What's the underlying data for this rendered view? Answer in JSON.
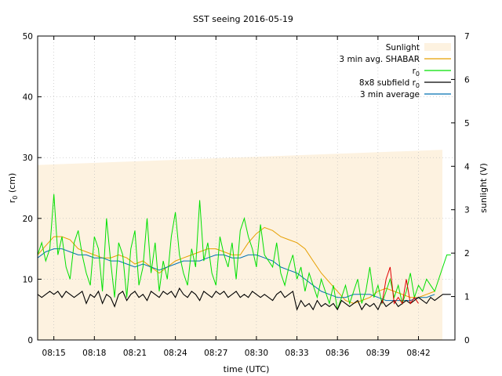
{
  "chart_data": {
    "type": "line",
    "title": "SST seeing 2016-05-19",
    "xlabel": "time (UTC)",
    "ylabel_main": "r",
    "ylabel_sub": "0",
    "ylabel_unit": " (cm)",
    "y2label": "sunlight (V)",
    "xlim": [
      8.23,
      8.745
    ],
    "ylim": [
      0,
      50
    ],
    "y2lim": [
      0,
      7
    ],
    "grid": true,
    "legend_position": "top-right",
    "x_ticks": [
      {
        "x": 8.25,
        "label": "08:15"
      },
      {
        "x": 8.3,
        "label": "08:18"
      },
      {
        "x": 8.35,
        "label": "08:21"
      },
      {
        "x": 8.4,
        "label": "08:24"
      },
      {
        "x": 8.45,
        "label": "08:27"
      },
      {
        "x": 8.5,
        "label": "08:30"
      },
      {
        "x": 8.55,
        "label": "08:33"
      },
      {
        "x": 8.6,
        "label": "08:36"
      },
      {
        "x": 8.65,
        "label": "08:39"
      },
      {
        "x": 8.7,
        "label": "08:42"
      }
    ],
    "y_ticks": [
      "0",
      "10",
      "20",
      "30",
      "40",
      "50"
    ],
    "y2_ticks": [
      "0",
      "1",
      "2",
      "3",
      "4",
      "5",
      "6",
      "7"
    ],
    "legend": [
      {
        "label": "Sunlight",
        "color": "#fdf2e0",
        "kind": "area"
      },
      {
        "label": "3 min avg. SHABAR",
        "color": "#e69f00",
        "kind": "line"
      },
      {
        "label": "r",
        "sub": "0",
        "color": "#00e000",
        "kind": "line"
      },
      {
        "label": "8x8 subfield r",
        "sub": "0",
        "color": "#000000",
        "kind": "line"
      },
      {
        "label": "3 min average",
        "color": "#0072b2",
        "kind": "line"
      }
    ],
    "series": [
      {
        "name": "Sunlight",
        "axis": "y2",
        "type": "area",
        "color": "#fdf2e0",
        "x": [
          8.23,
          8.745
        ],
        "y": [
          4.03,
          4.38
        ]
      },
      {
        "name": "3 min avg. SHABAR",
        "color": "#e69f00",
        "x": [
          8.23,
          8.24,
          8.25,
          8.26,
          8.27,
          8.28,
          8.29,
          8.3,
          8.31,
          8.32,
          8.33,
          8.34,
          8.35,
          8.36,
          8.37,
          8.38,
          8.39,
          8.4,
          8.41,
          8.42,
          8.43,
          8.44,
          8.45,
          8.46,
          8.47,
          8.48,
          8.49,
          8.5,
          8.51,
          8.52,
          8.53,
          8.54,
          8.55,
          8.56,
          8.57,
          8.58,
          8.59,
          8.6,
          8.61,
          8.62,
          8.63,
          8.64,
          8.65,
          8.66,
          8.67,
          8.68,
          8.69,
          8.7,
          8.71,
          8.72
        ],
        "y": [
          14,
          15.5,
          17,
          17,
          16.5,
          15,
          14.5,
          14,
          13.5,
          13.5,
          14,
          13.5,
          12.5,
          13,
          12,
          11,
          12,
          13,
          13.5,
          14,
          14.5,
          15,
          15,
          14.5,
          14,
          14,
          16,
          17.5,
          18.5,
          18,
          17,
          16.5,
          16,
          15,
          13,
          11,
          9.5,
          8,
          6.5,
          6,
          6.5,
          7,
          8,
          8.5,
          8,
          7.5,
          7,
          7,
          7.5,
          8
        ]
      },
      {
        "name": "3 min average",
        "color": "#0072b2",
        "x": [
          8.23,
          8.24,
          8.25,
          8.26,
          8.27,
          8.28,
          8.29,
          8.3,
          8.31,
          8.32,
          8.33,
          8.34,
          8.35,
          8.36,
          8.37,
          8.38,
          8.39,
          8.4,
          8.41,
          8.42,
          8.43,
          8.44,
          8.45,
          8.46,
          8.47,
          8.48,
          8.49,
          8.5,
          8.51,
          8.52,
          8.53,
          8.54,
          8.55,
          8.56,
          8.57,
          8.58,
          8.59,
          8.6,
          8.61,
          8.62,
          8.63,
          8.64,
          8.65,
          8.66,
          8.67,
          8.68,
          8.69,
          8.7,
          8.71,
          8.72
        ],
        "y": [
          13.5,
          14.5,
          15,
          15,
          14.5,
          14,
          14,
          13.5,
          13.5,
          13,
          13,
          12.5,
          12,
          12.5,
          12,
          11.5,
          12,
          12.5,
          13,
          13,
          13,
          13.5,
          14,
          14,
          13.5,
          13.5,
          14,
          14,
          13.5,
          13,
          12,
          11.5,
          11,
          10,
          9,
          8,
          7.5,
          7,
          7,
          7.5,
          7.5,
          7.5,
          7,
          6.5,
          6.5,
          6.5,
          6.5,
          7,
          7,
          7.5
        ]
      },
      {
        "name": "r0",
        "color": "#00e000",
        "x": [
          8.23,
          8.235,
          8.24,
          8.245,
          8.25,
          8.255,
          8.26,
          8.265,
          8.27,
          8.275,
          8.28,
          8.285,
          8.29,
          8.295,
          8.3,
          8.305,
          8.31,
          8.315,
          8.32,
          8.325,
          8.33,
          8.335,
          8.34,
          8.345,
          8.35,
          8.355,
          8.36,
          8.365,
          8.37,
          8.375,
          8.38,
          8.385,
          8.39,
          8.395,
          8.4,
          8.405,
          8.41,
          8.415,
          8.42,
          8.425,
          8.43,
          8.435,
          8.44,
          8.445,
          8.45,
          8.455,
          8.46,
          8.465,
          8.47,
          8.475,
          8.48,
          8.485,
          8.49,
          8.495,
          8.5,
          8.505,
          8.51,
          8.515,
          8.52,
          8.525,
          8.53,
          8.535,
          8.54,
          8.545,
          8.55,
          8.555,
          8.56,
          8.565,
          8.57,
          8.575,
          8.58,
          8.585,
          8.59,
          8.595,
          8.6,
          8.605,
          8.61,
          8.615,
          8.62,
          8.625,
          8.63,
          8.635,
          8.64,
          8.645,
          8.65,
          8.655,
          8.66,
          8.665,
          8.67,
          8.675,
          8.68,
          8.685,
          8.69,
          8.695,
          8.7,
          8.705,
          8.71,
          8.715,
          8.72,
          8.725,
          8.73,
          8.735,
          8.74
        ],
        "y": [
          14,
          16,
          13,
          15,
          24,
          14,
          17,
          12,
          10,
          16,
          18,
          14,
          11,
          9,
          17,
          15,
          8,
          20,
          13,
          7,
          16,
          14,
          7,
          15,
          18,
          9,
          12,
          20,
          11,
          16,
          8,
          13,
          10,
          17,
          21,
          14,
          11,
          9,
          15,
          12,
          23,
          13,
          16,
          11,
          9,
          17,
          14,
          12,
          16,
          10,
          18,
          20,
          17,
          15,
          12,
          19,
          14,
          13,
          12,
          16,
          11,
          9,
          12,
          14,
          10,
          12,
          8,
          11,
          9,
          7,
          10,
          8,
          6,
          9,
          5,
          7,
          9,
          6,
          8,
          10,
          6,
          8,
          12,
          7,
          9,
          6,
          8,
          10,
          7,
          9,
          6,
          8,
          11,
          7,
          9,
          8,
          10,
          9,
          8,
          10,
          12,
          14,
          14
        ]
      },
      {
        "name": "8x8 subfield r0",
        "color": "#000000",
        "x": [
          8.23,
          8.235,
          8.24,
          8.245,
          8.25,
          8.255,
          8.26,
          8.265,
          8.27,
          8.275,
          8.28,
          8.285,
          8.29,
          8.295,
          8.3,
          8.305,
          8.31,
          8.315,
          8.32,
          8.325,
          8.33,
          8.335,
          8.34,
          8.345,
          8.35,
          8.355,
          8.36,
          8.365,
          8.37,
          8.375,
          8.38,
          8.385,
          8.39,
          8.395,
          8.4,
          8.405,
          8.41,
          8.415,
          8.42,
          8.425,
          8.43,
          8.435,
          8.44,
          8.445,
          8.45,
          8.455,
          8.46,
          8.465,
          8.47,
          8.475,
          8.48,
          8.485,
          8.49,
          8.495,
          8.5,
          8.505,
          8.51,
          8.515,
          8.52,
          8.525,
          8.53,
          8.535,
          8.54,
          8.545,
          8.55,
          8.555,
          8.56,
          8.565,
          8.57,
          8.575,
          8.58,
          8.585,
          8.59,
          8.595,
          8.6,
          8.605,
          8.61,
          8.615,
          8.62,
          8.625,
          8.63,
          8.635,
          8.64,
          8.645,
          8.65,
          8.655,
          8.66,
          8.665,
          8.67,
          8.675,
          8.68,
          8.685,
          8.69,
          8.695,
          8.7,
          8.705,
          8.71,
          8.715,
          8.72,
          8.725,
          8.73,
          8.735,
          8.74
        ],
        "y": [
          7.5,
          7,
          7.5,
          8,
          7.5,
          8,
          7,
          8,
          7.5,
          7,
          7.5,
          8,
          6,
          7.5,
          7,
          8,
          6,
          7.5,
          7,
          5.5,
          7.5,
          8,
          6.5,
          7.5,
          8,
          7,
          7.5,
          6.5,
          8,
          7.5,
          7,
          8,
          7.5,
          8,
          7,
          8.5,
          7.5,
          7,
          8,
          7.5,
          6.5,
          8,
          7.5,
          7,
          8,
          7.5,
          8,
          7,
          7.5,
          8,
          7,
          7.5,
          7,
          8,
          7.5,
          7,
          7.5,
          7,
          6.5,
          7.5,
          8,
          7,
          7.5,
          8,
          5,
          6.5,
          5.5,
          6,
          5,
          6.5,
          5.5,
          6,
          5.5,
          6,
          5,
          6.5,
          6,
          5.5,
          6,
          6.5,
          5,
          6,
          5.5,
          6,
          5,
          6.5,
          5.5,
          6,
          6.5,
          5.5,
          6,
          6.5,
          6,
          6.5,
          7,
          6.5,
          6,
          7,
          6.5,
          7,
          7.5,
          7.5,
          7.5
        ]
      },
      {
        "name": "r0 spikes",
        "color": "#e00000",
        "x": [
          8.655,
          8.66,
          8.665,
          8.67,
          8.675,
          8.68,
          8.685,
          8.69,
          8.695,
          8.7
        ],
        "y": [
          6,
          10,
          12,
          6,
          7,
          6,
          10,
          6,
          7,
          6
        ]
      }
    ]
  }
}
